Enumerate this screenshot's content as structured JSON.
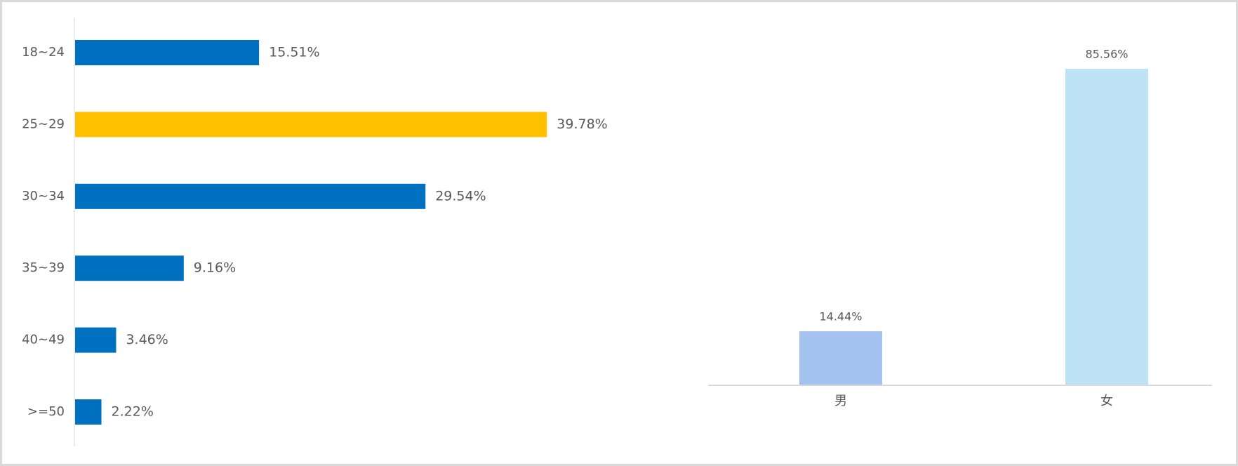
{
  "chart_data": [
    {
      "type": "hbar",
      "categories": [
        "18~24",
        "25~29",
        "30~34",
        "35~39",
        "40~49",
        ">=50"
      ],
      "values": [
        15.51,
        39.78,
        29.54,
        9.16,
        3.46,
        2.22
      ],
      "value_labels": [
        "15.51%",
        "39.78%",
        "29.54%",
        "9.16%",
        "3.46%",
        "2.22%"
      ],
      "colors": [
        "#0070c0",
        "#ffc000",
        "#0070c0",
        "#0070c0",
        "#0070c0",
        "#0070c0"
      ]
    },
    {
      "type": "bar",
      "categories": [
        "男",
        "女"
      ],
      "values": [
        14.44,
        85.56
      ],
      "value_labels": [
        "14.44%",
        "85.56%"
      ],
      "colors": [
        "#a4c2f0",
        "#bde3f5"
      ]
    }
  ]
}
